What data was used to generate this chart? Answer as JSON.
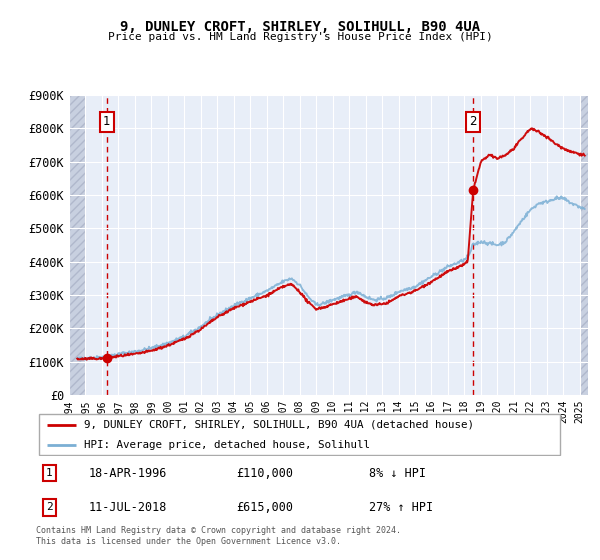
{
  "title": "9, DUNLEY CROFT, SHIRLEY, SOLIHULL, B90 4UA",
  "subtitle": "Price paid vs. HM Land Registry's House Price Index (HPI)",
  "xlim": [
    1994.0,
    2025.5
  ],
  "ylim": [
    0,
    900000
  ],
  "yticks": [
    0,
    100000,
    200000,
    300000,
    400000,
    500000,
    600000,
    700000,
    800000,
    900000
  ],
  "ytick_labels": [
    "£0",
    "£100K",
    "£200K",
    "£300K",
    "£400K",
    "£500K",
    "£600K",
    "£700K",
    "£800K",
    "£900K"
  ],
  "xticks": [
    1994,
    1995,
    1996,
    1997,
    1998,
    1999,
    2000,
    2001,
    2002,
    2003,
    2004,
    2005,
    2006,
    2007,
    2008,
    2009,
    2010,
    2011,
    2012,
    2013,
    2014,
    2015,
    2016,
    2017,
    2018,
    2019,
    2020,
    2021,
    2022,
    2023,
    2024,
    2025
  ],
  "sale1_year": 1996.29,
  "sale1_price": 110000,
  "sale2_year": 2018.53,
  "sale2_price": 615000,
  "hpi_color": "#7bafd4",
  "price_color": "#cc0000",
  "vline_color": "#cc0000",
  "bg_color": "#e8eef8",
  "hatch_color": "#c8d0e0",
  "grid_color": "#ffffff",
  "legend_label1": "9, DUNLEY CROFT, SHIRLEY, SOLIHULL, B90 4UA (detached house)",
  "legend_label2": "HPI: Average price, detached house, Solihull",
  "annotation1_date": "18-APR-1996",
  "annotation1_price": "£110,000",
  "annotation1_hpi": "8% ↓ HPI",
  "annotation2_date": "11-JUL-2018",
  "annotation2_price": "£615,000",
  "annotation2_hpi": "27% ↑ HPI",
  "footer": "Contains HM Land Registry data © Crown copyright and database right 2024.\nThis data is licensed under the Open Government Licence v3.0."
}
